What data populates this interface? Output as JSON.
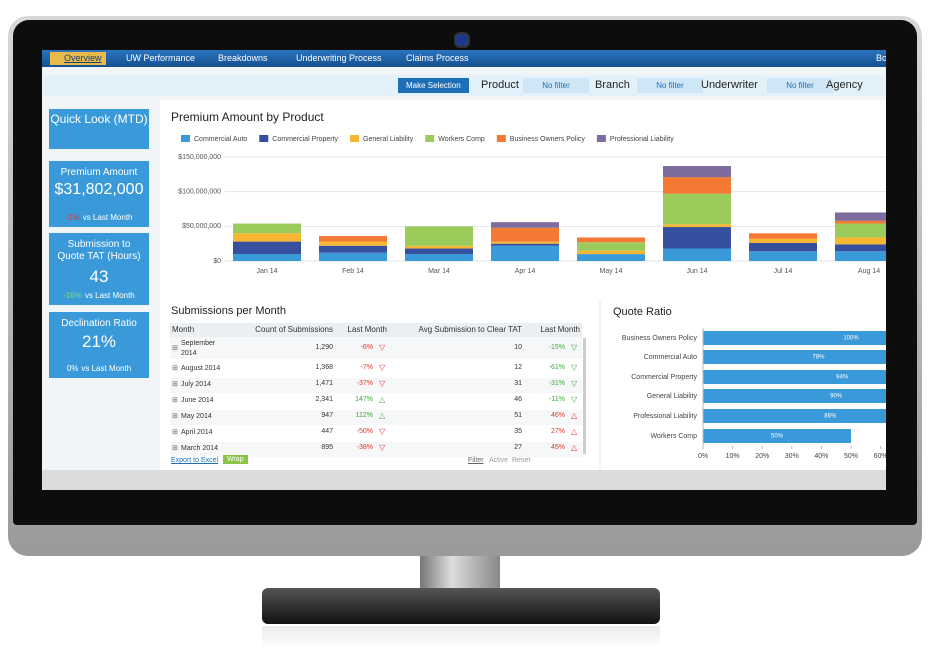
{
  "nav": {
    "tabs": [
      "Overview",
      "UW Performance",
      "Breakdowns",
      "Underwriting Process",
      "Claims Process",
      "Bo"
    ]
  },
  "filters": {
    "button": "Make Selection",
    "items": [
      {
        "label": "Product",
        "value": "No filter"
      },
      {
        "label": "Branch",
        "value": "No filter"
      },
      {
        "label": "Underwriter",
        "value": "No filter"
      },
      {
        "label": "Agency"
      }
    ]
  },
  "kpis": {
    "header": "Quick Look (MTD)",
    "cards": [
      {
        "title": "Premium Amount",
        "value": "$31,802,000",
        "change": "-1%",
        "change_color": "#e8322e",
        "note": "vs Last Month"
      },
      {
        "title": "Submission to Quote TAT (Hours)",
        "value": "43",
        "change": "-16%",
        "change_color": "#7ee05a",
        "note": "vs Last Month"
      },
      {
        "title": "Declination Ratio",
        "value": "21%",
        "change": "0%",
        "change_color": "#ffffff",
        "note": "vs Last Month"
      }
    ]
  },
  "chart_data": [
    {
      "type": "bar",
      "stacked": true,
      "title": "Premium Amount by Product",
      "categories": [
        "Jan 14",
        "Feb 14",
        "Mar 14",
        "Apr 14",
        "May 14",
        "Jun 14",
        "Jul 14",
        "Aug 14"
      ],
      "series": [
        {
          "name": "Commercial Auto",
          "color": "#3a9ad9",
          "values": [
            10000000,
            12000000,
            10000000,
            22000000,
            10000000,
            18000000,
            14000000,
            14000000
          ]
        },
        {
          "name": "Commercial Property",
          "color": "#364f9e",
          "values": [
            18000000,
            10000000,
            8000000,
            3000000,
            0,
            31000000,
            12000000,
            10000000
          ]
        },
        {
          "name": "General Liability",
          "color": "#f7b733",
          "values": [
            12000000,
            6000000,
            4000000,
            3000000,
            5000000,
            4000000,
            6000000,
            10000000
          ]
        },
        {
          "name": "Workers Comp",
          "color": "#9bcb5b",
          "values": [
            14000000,
            0,
            28000000,
            0,
            12000000,
            44000000,
            0,
            20000000
          ]
        },
        {
          "name": "Business Owners Policy",
          "color": "#f47a33",
          "values": [
            0,
            8000000,
            0,
            20000000,
            7000000,
            24000000,
            8000000,
            4000000
          ]
        },
        {
          "name": "Professional Liability",
          "color": "#7d6c9d",
          "values": [
            0,
            0,
            0,
            8000000,
            0,
            16000000,
            0,
            12000000
          ]
        }
      ],
      "ylim": [
        0,
        150000000
      ],
      "yticks": [
        {
          "value": 0,
          "label": "$0"
        },
        {
          "value": 50000000,
          "label": "$50,000,000"
        },
        {
          "value": 100000000,
          "label": "$100,000,000"
        },
        {
          "value": 150000000,
          "label": "$150,000,000"
        }
      ],
      "grid": true,
      "legend": "top"
    },
    {
      "type": "barh",
      "title": "Quote Ratio",
      "categories": [
        "Business Owners Policy",
        "Commercial Auto",
        "Commercial Property",
        "General Liability",
        "Professional Liability",
        "Workers Comp"
      ],
      "values": [
        100,
        78,
        94,
        90,
        86,
        50
      ],
      "value_labels": [
        "100%",
        "78%",
        "94%",
        "90%",
        "86%",
        "50%"
      ],
      "color": "#3a9ad9",
      "xlim": [
        0,
        60
      ],
      "xticks": [
        {
          "value": 0,
          "label": "0%"
        },
        {
          "value": 10,
          "label": "10%"
        },
        {
          "value": 20,
          "label": "20%"
        },
        {
          "value": 30,
          "label": "30%"
        },
        {
          "value": 40,
          "label": "40%"
        },
        {
          "value": 50,
          "label": "50%"
        },
        {
          "value": 60,
          "label": "60%"
        }
      ]
    }
  ],
  "table": {
    "title": "Submissions per Month",
    "headers": [
      "Month",
      "Count of Submissions",
      "Last Month",
      "Avg Submission to Clear TAT",
      "Last Month"
    ],
    "rows": [
      [
        "September 2014",
        "1,290",
        "-6%",
        "10",
        "-15%"
      ],
      [
        "August 2014",
        "1,368",
        "-7%",
        "12",
        "-61%"
      ],
      [
        "July 2014",
        "1,471",
        "-37%",
        "31",
        "-31%"
      ],
      [
        "June 2014",
        "2,341",
        "147%",
        "46",
        "-11%"
      ],
      [
        "May 2014",
        "947",
        "112%",
        "51",
        "46%"
      ],
      [
        "April 2014",
        "447",
        "-50%",
        "35",
        "27%"
      ],
      [
        "March 2014",
        "895",
        "-38%",
        "27",
        "45%"
      ]
    ],
    "footer": {
      "export": "Export to Excel",
      "wrap": "Wrap",
      "filter": "Filter",
      "active": "Active",
      "reset": "Reset"
    }
  }
}
